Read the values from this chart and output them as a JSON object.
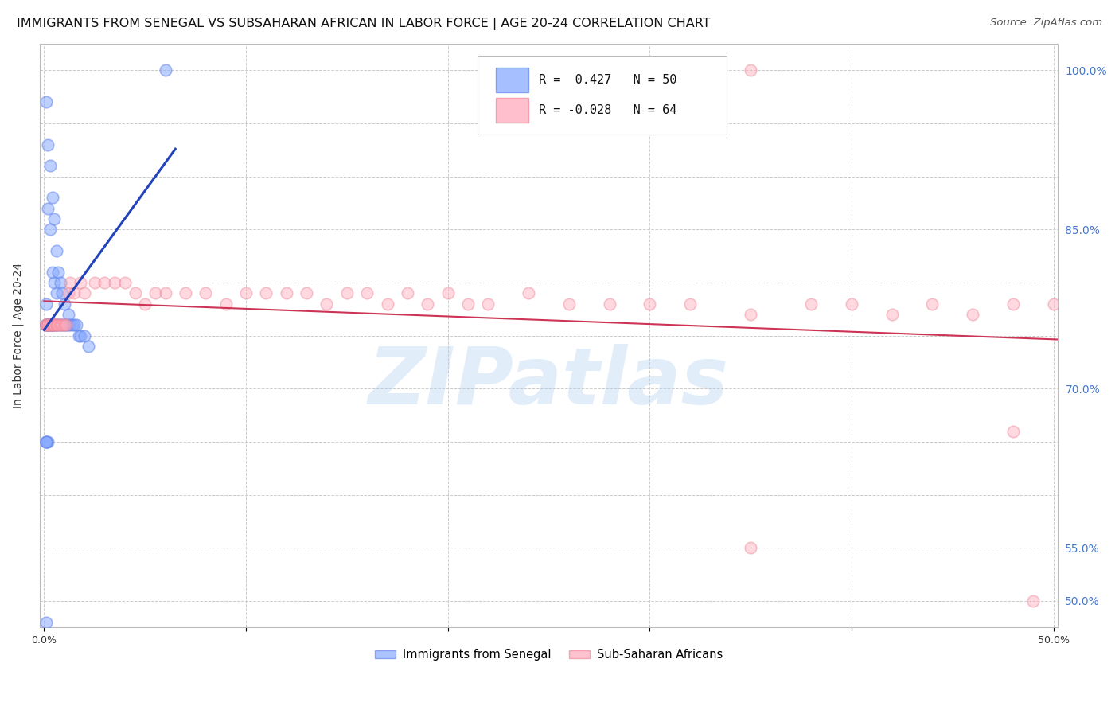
{
  "title": "IMMIGRANTS FROM SENEGAL VS SUBSAHARAN AFRICAN IN LABOR FORCE | AGE 20-24 CORRELATION CHART",
  "source": "Source: ZipAtlas.com",
  "ylabel": "In Labor Force | Age 20-24",
  "xlim": [
    0.0,
    0.5
  ],
  "ylim": [
    0.475,
    1.025
  ],
  "xticks": [
    0.0,
    0.1,
    0.2,
    0.3,
    0.4,
    0.5
  ],
  "xticklabels": [
    "0.0%",
    "",
    "",
    "",
    "",
    "50.0%"
  ],
  "ytick_vals": [
    0.5,
    0.55,
    0.6,
    0.65,
    0.7,
    0.75,
    0.8,
    0.85,
    0.9,
    0.95,
    1.0
  ],
  "yticklabels_right": [
    "50.0%",
    "55.0%",
    "",
    "",
    "70.0%",
    "",
    "",
    "85.0%",
    "",
    "",
    "100.0%"
  ],
  "grid_color": "#cccccc",
  "background_color": "#ffffff",
  "blue_dot_color": "#88aaff",
  "pink_dot_color": "#ffaabb",
  "blue_edge_color": "#6688ee",
  "pink_edge_color": "#ee8899",
  "blue_line_color": "#2244bb",
  "pink_line_color": "#cc3355",
  "right_tick_color": "#4477cc",
  "legend_R_blue": " 0.427",
  "legend_N_blue": "50",
  "legend_R_pink": "-0.028",
  "legend_N_pink": "64",
  "legend_label_blue": "Immigrants from Senegal",
  "legend_label_pink": "Sub-Saharan Africans",
  "title_fontsize": 11.5,
  "source_fontsize": 9.5,
  "axis_label_fontsize": 10,
  "tick_fontsize": 9,
  "legend_fontsize": 11,
  "watermark_text": "ZIPatlas",
  "watermark_color": "#aaccee",
  "watermark_alpha": 0.35,
  "blue_x": [
    0.001,
    0.001,
    0.001,
    0.001,
    0.001,
    0.002,
    0.002,
    0.002,
    0.002,
    0.003,
    0.003,
    0.003,
    0.003,
    0.004,
    0.004,
    0.004,
    0.005,
    0.005,
    0.005,
    0.006,
    0.006,
    0.006,
    0.007,
    0.007,
    0.008,
    0.008,
    0.009,
    0.009,
    0.01,
    0.01,
    0.011,
    0.012,
    0.012,
    0.013,
    0.014,
    0.015,
    0.016,
    0.017,
    0.018,
    0.02,
    0.022,
    0.001,
    0.002,
    0.003,
    0.004,
    0.001,
    0.002,
    0.001,
    0.001,
    0.06
  ],
  "blue_y": [
    0.97,
    0.78,
    0.76,
    0.76,
    0.65,
    0.93,
    0.87,
    0.76,
    0.76,
    0.91,
    0.85,
    0.76,
    0.76,
    0.88,
    0.81,
    0.76,
    0.86,
    0.8,
    0.76,
    0.83,
    0.79,
    0.76,
    0.81,
    0.76,
    0.8,
    0.76,
    0.79,
    0.76,
    0.78,
    0.76,
    0.76,
    0.77,
    0.76,
    0.76,
    0.76,
    0.76,
    0.76,
    0.75,
    0.75,
    0.75,
    0.74,
    0.76,
    0.76,
    0.76,
    0.76,
    0.48,
    0.65,
    0.65,
    0.65,
    1.0
  ],
  "pink_x": [
    0.001,
    0.001,
    0.001,
    0.002,
    0.002,
    0.003,
    0.003,
    0.004,
    0.004,
    0.005,
    0.005,
    0.006,
    0.006,
    0.007,
    0.008,
    0.009,
    0.01,
    0.011,
    0.012,
    0.013,
    0.015,
    0.018,
    0.02,
    0.025,
    0.03,
    0.035,
    0.04,
    0.045,
    0.05,
    0.055,
    0.06,
    0.07,
    0.08,
    0.09,
    0.1,
    0.11,
    0.12,
    0.13,
    0.14,
    0.15,
    0.16,
    0.17,
    0.18,
    0.19,
    0.2,
    0.21,
    0.22,
    0.24,
    0.26,
    0.28,
    0.3,
    0.32,
    0.35,
    0.38,
    0.4,
    0.42,
    0.44,
    0.46,
    0.48,
    0.5,
    0.35,
    0.48,
    0.35,
    0.49
  ],
  "pink_y": [
    0.76,
    0.76,
    0.76,
    0.76,
    0.76,
    0.76,
    0.76,
    0.76,
    0.76,
    0.76,
    0.76,
    0.76,
    0.76,
    0.76,
    0.76,
    0.76,
    0.76,
    0.76,
    0.79,
    0.8,
    0.79,
    0.8,
    0.79,
    0.8,
    0.8,
    0.8,
    0.8,
    0.79,
    0.78,
    0.79,
    0.79,
    0.79,
    0.79,
    0.78,
    0.79,
    0.79,
    0.79,
    0.79,
    0.78,
    0.79,
    0.79,
    0.78,
    0.79,
    0.78,
    0.79,
    0.78,
    0.78,
    0.79,
    0.78,
    0.78,
    0.78,
    0.78,
    0.77,
    0.78,
    0.78,
    0.77,
    0.78,
    0.77,
    0.78,
    0.78,
    1.0,
    0.66,
    0.55,
    0.5
  ]
}
